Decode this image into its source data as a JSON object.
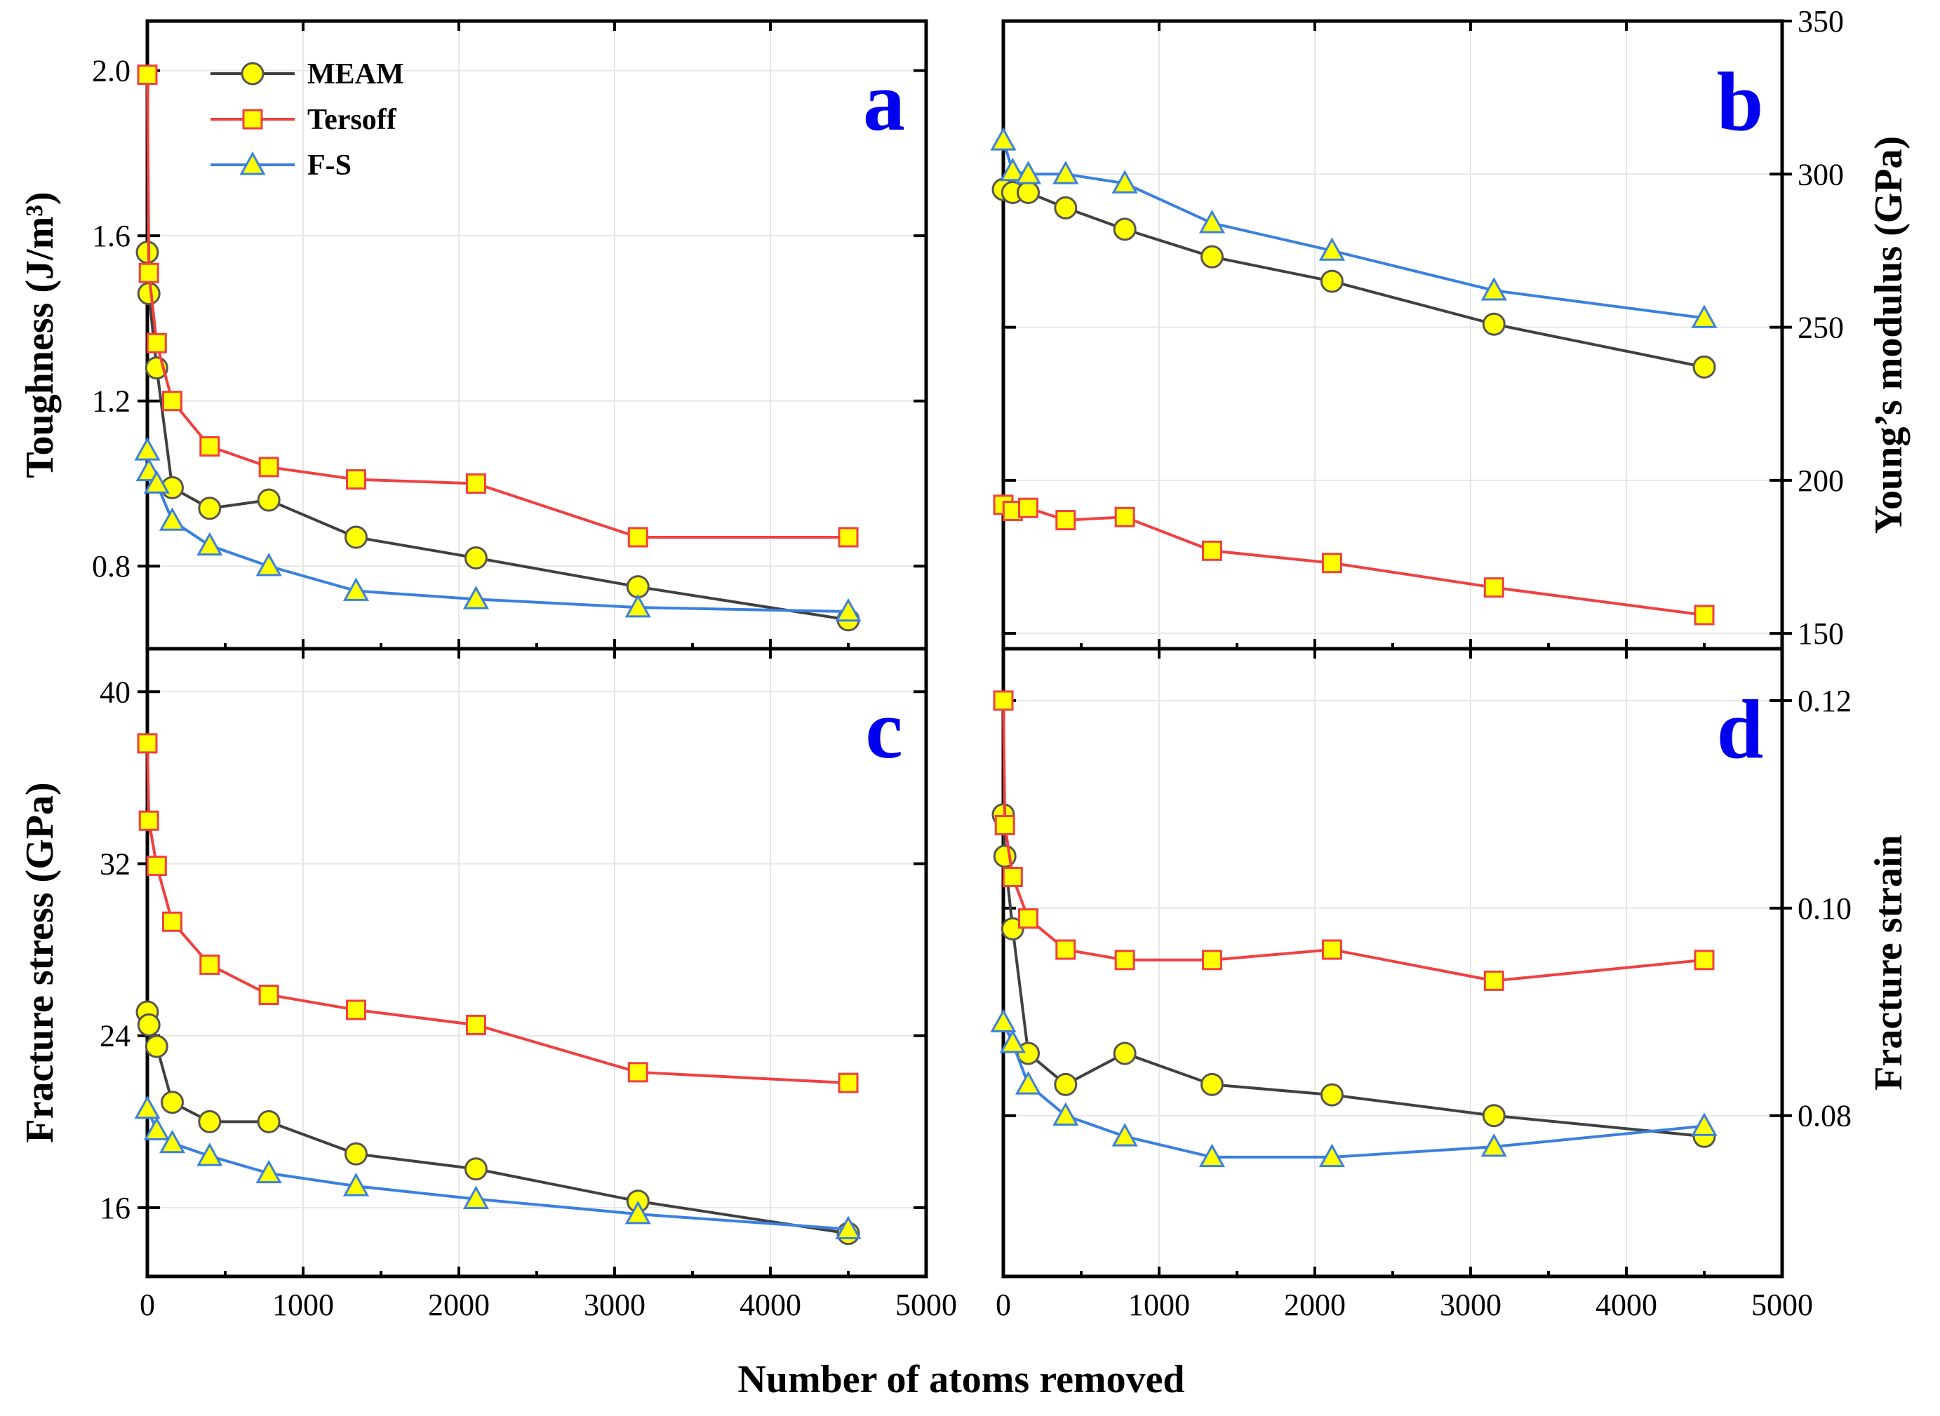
{
  "colors": {
    "MEAM": "#404040",
    "Tersoff": "#f04040",
    "F-S": "#3a80e0",
    "marker_fill": "#ffff00",
    "marker_edge_MEAM": "#555555",
    "marker_edge_Tersoff": "#f04040",
    "marker_edge_F-S": "#3a80e0",
    "panel_letter": "#0000ee"
  },
  "chart_data": [
    {
      "type": "line",
      "panel": "a",
      "xlabel": "Number of atoms removed",
      "ylabel": "Toughness (J/m³)",
      "xlim": [
        0,
        5000
      ],
      "ylim": [
        0.6,
        2.12
      ],
      "x_ticks": [
        0,
        1000,
        2000,
        3000,
        4000,
        5000
      ],
      "y_ticks": [
        0.8,
        1.2,
        1.6,
        2.0
      ],
      "y_tick_labels": [
        "0.8",
        "1.2",
        "1.6",
        "2.0"
      ],
      "y_axis_side": "left",
      "show_x_tick_labels": false,
      "grid": true,
      "legend": {
        "position": "top-left",
        "entries": [
          "MEAM",
          "Tersoff",
          "F-S"
        ]
      },
      "series": [
        {
          "name": "MEAM",
          "marker": "circle",
          "x": [
            0,
            10,
            60,
            160,
            400,
            780,
            1340,
            2110,
            3150,
            4500
          ],
          "y": [
            1.56,
            1.46,
            1.28,
            0.99,
            0.94,
            0.96,
            0.87,
            0.82,
            0.75,
            0.67
          ]
        },
        {
          "name": "Tersoff",
          "marker": "square",
          "x": [
            0,
            10,
            60,
            160,
            400,
            780,
            1340,
            2110,
            3150,
            4500
          ],
          "y": [
            1.99,
            1.51,
            1.34,
            1.2,
            1.09,
            1.04,
            1.01,
            1.0,
            0.87,
            0.87
          ]
        },
        {
          "name": "F-S",
          "marker": "triangle",
          "x": [
            0,
            10,
            60,
            160,
            400,
            780,
            1340,
            2110,
            3150,
            4500
          ],
          "y": [
            1.08,
            1.03,
            1.0,
            0.91,
            0.85,
            0.8,
            0.74,
            0.72,
            0.7,
            0.69
          ]
        }
      ]
    },
    {
      "type": "line",
      "panel": "b",
      "xlabel": "Number of atoms removed",
      "ylabel": "Young’s modulus (GPa)",
      "xlim": [
        0,
        5000
      ],
      "ylim": [
        145,
        350
      ],
      "x_ticks": [
        0,
        1000,
        2000,
        3000,
        4000,
        5000
      ],
      "y_ticks": [
        150,
        200,
        250,
        300,
        350
      ],
      "y_tick_labels": [
        "150",
        "200",
        "250",
        "300",
        "350"
      ],
      "y_axis_side": "right",
      "show_x_tick_labels": false,
      "grid": true,
      "series": [
        {
          "name": "MEAM",
          "marker": "circle",
          "x": [
            0,
            60,
            160,
            400,
            780,
            1340,
            2110,
            3150,
            4500
          ],
          "y": [
            295,
            294,
            294,
            289,
            282,
            273,
            265,
            251,
            237
          ]
        },
        {
          "name": "Tersoff",
          "marker": "square",
          "x": [
            0,
            60,
            160,
            400,
            780,
            1340,
            2110,
            3150,
            4500
          ],
          "y": [
            192,
            190,
            191,
            187,
            188,
            177,
            173,
            165,
            156
          ]
        },
        {
          "name": "F-S",
          "marker": "triangle",
          "x": [
            0,
            60,
            160,
            400,
            780,
            1340,
            2110,
            3150,
            4500
          ],
          "y": [
            311,
            301,
            300,
            300,
            297,
            284,
            275,
            262,
            253
          ]
        }
      ]
    },
    {
      "type": "line",
      "panel": "c",
      "xlabel": "Number of atoms removed",
      "ylabel": "Fracture stress (GPa)",
      "xlim": [
        0,
        5000
      ],
      "ylim": [
        12.8,
        42.0
      ],
      "x_ticks": [
        0,
        1000,
        2000,
        3000,
        4000,
        5000
      ],
      "x_tick_labels": [
        "0",
        "1000",
        "2000",
        "3000",
        "4000",
        "5000"
      ],
      "y_ticks": [
        16,
        24,
        32,
        40
      ],
      "y_tick_labels": [
        "16",
        "24",
        "32",
        "40"
      ],
      "y_axis_side": "left",
      "show_x_tick_labels": true,
      "grid": true,
      "series": [
        {
          "name": "MEAM",
          "marker": "circle",
          "x": [
            0,
            10,
            60,
            160,
            400,
            780,
            1340,
            2110,
            3150,
            4500
          ],
          "y": [
            25.1,
            24.5,
            23.5,
            20.9,
            20.0,
            20.0,
            18.5,
            17.8,
            16.3,
            14.8
          ]
        },
        {
          "name": "Tersoff",
          "marker": "square",
          "x": [
            0,
            10,
            60,
            160,
            400,
            780,
            1340,
            2110,
            3150,
            4500
          ],
          "y": [
            37.6,
            34.0,
            31.9,
            29.3,
            27.3,
            25.9,
            25.2,
            24.5,
            22.3,
            21.8
          ]
        },
        {
          "name": "F-S",
          "marker": "triangle",
          "x": [
            0,
            60,
            160,
            400,
            780,
            1340,
            2110,
            3150,
            4500
          ],
          "y": [
            20.6,
            19.6,
            19.0,
            18.4,
            17.6,
            17.0,
            16.4,
            15.7,
            15.0
          ]
        }
      ]
    },
    {
      "type": "line",
      "panel": "d",
      "xlabel": "Number of atoms removed",
      "ylabel": "Fracture strain",
      "xlim": [
        0,
        5000
      ],
      "ylim": [
        0.0645,
        0.125
      ],
      "x_ticks": [
        0,
        1000,
        2000,
        3000,
        4000,
        5000
      ],
      "x_tick_labels": [
        "0",
        "1000",
        "2000",
        "3000",
        "4000",
        "5000"
      ],
      "y_ticks": [
        0.08,
        0.1,
        0.12
      ],
      "y_tick_labels": [
        "0.08",
        "0.10",
        "0.12"
      ],
      "y_axis_side": "right",
      "show_x_tick_labels": true,
      "grid": true,
      "series": [
        {
          "name": "MEAM",
          "marker": "circle",
          "x": [
            0,
            10,
            60,
            160,
            400,
            780,
            1340,
            2110,
            3150,
            4500
          ],
          "y": [
            0.109,
            0.105,
            0.098,
            0.086,
            0.083,
            0.086,
            0.083,
            0.082,
            0.08,
            0.078
          ]
        },
        {
          "name": "Tersoff",
          "marker": "square",
          "x": [
            0,
            10,
            60,
            160,
            400,
            780,
            1340,
            2110,
            3150,
            4500
          ],
          "y": [
            0.12,
            0.108,
            0.103,
            0.099,
            0.096,
            0.095,
            0.095,
            0.096,
            0.093,
            0.095
          ]
        },
        {
          "name": "F-S",
          "marker": "triangle",
          "x": [
            0,
            60,
            160,
            400,
            780,
            1340,
            2110,
            3150,
            4500
          ],
          "y": [
            0.089,
            0.087,
            0.083,
            0.08,
            0.078,
            0.076,
            0.076,
            0.077,
            0.079
          ]
        }
      ]
    }
  ],
  "shared_xlabel": "Number of atoms removed"
}
